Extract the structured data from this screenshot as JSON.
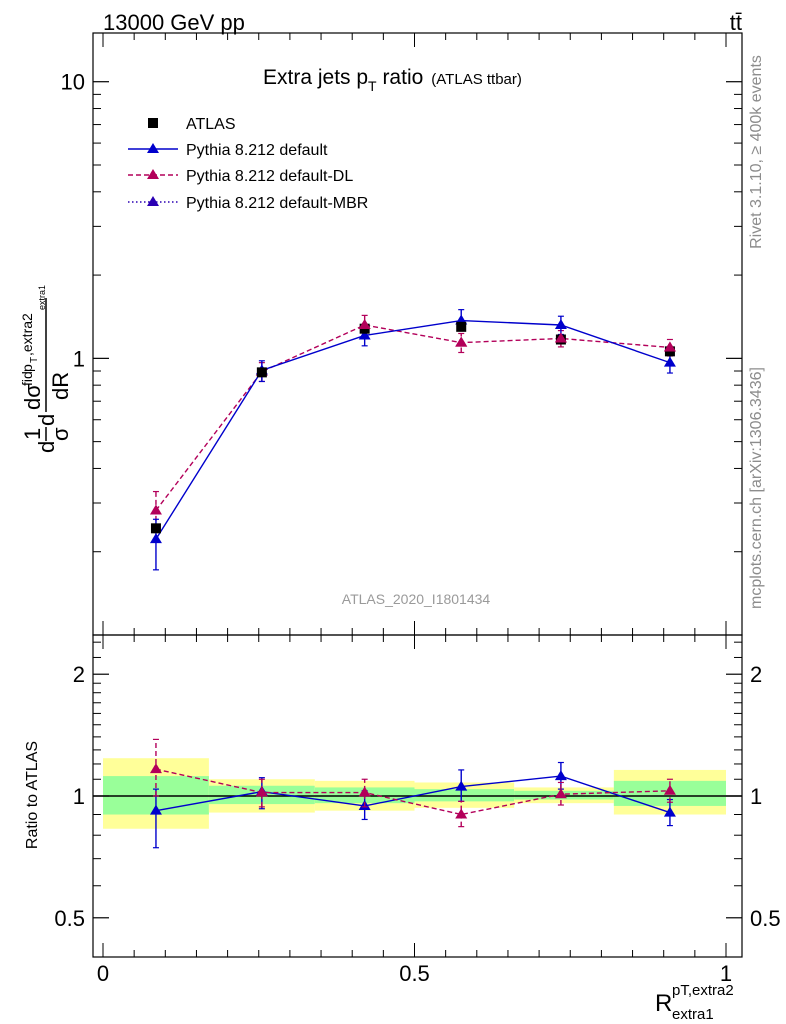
{
  "header": {
    "left_label": "13000 GeV pp",
    "right_label": "tt̄"
  },
  "side_labels": {
    "rivet": "Rivet 3.1.10, ≥ 400k events",
    "mcplots": "mcplots.cern.ch [arXiv:1306.3436]"
  },
  "watermark": "ATLAS_2020_I1801434",
  "colors": {
    "atlas": "#000000",
    "default": "#0000cc",
    "dl": "#b3005a",
    "mbr": "#2a00b3",
    "band_inner": "#99ff99",
    "band_outer": "#ffff99"
  },
  "chart_data": [
    {
      "type": "scatter",
      "title": "Extra jets p_T ratio (ATLAS ttbar)",
      "title_main": "Extra jets p",
      "title_sub": "T",
      "title_rest": " ratio",
      "title_paren": "(ATLAS ttbar)",
      "ylabel": "1/σ dσfid / dR pT,extra2 extra1",
      "yscale": "log",
      "ylim": [
        0.1,
        15
      ],
      "xlim": [
        0,
        1
      ],
      "yticks": [
        {
          "v": 1,
          "label": "1"
        },
        {
          "v": 10,
          "label": "10"
        }
      ],
      "legend_position": "top-left",
      "x": [
        0.085,
        0.255,
        0.42,
        0.575,
        0.735,
        0.91
      ],
      "bin_edges": [
        0,
        0.17,
        0.34,
        0.5,
        0.66,
        0.82,
        1.0
      ],
      "series": [
        {
          "name": "ATLAS",
          "style": "data",
          "values": [
            0.243,
            0.89,
            1.28,
            1.3,
            1.17,
            1.06
          ]
        },
        {
          "name": "Pythia 8.212 default",
          "style": "solid",
          "values": [
            0.222,
            0.905,
            1.21,
            1.37,
            1.32,
            0.965
          ],
          "err_lo": [
            0.172,
            0.825,
            1.11,
            1.27,
            1.22,
            0.885
          ],
          "err_hi": [
            0.262,
            0.98,
            1.31,
            1.5,
            1.42,
            1.045
          ]
        },
        {
          "name": "Pythia 8.212 default-DL",
          "style": "dashed",
          "values": [
            0.282,
            0.895,
            1.32,
            1.14,
            1.18,
            1.095
          ],
          "err_lo": [
            0.242,
            0.825,
            1.2,
            1.05,
            1.1,
            1.02
          ],
          "err_hi": [
            0.33,
            0.965,
            1.43,
            1.23,
            1.26,
            1.17
          ]
        },
        {
          "name": "Pythia 8.212 default-MBR",
          "style": "dotted",
          "values": [],
          "err_lo": [],
          "err_hi": []
        }
      ]
    },
    {
      "type": "scatter",
      "ylabel": "Ratio to ATLAS",
      "xlabel": "R extra1 pT,extra2",
      "xlabel_main": "R",
      "xlabel_sup": "pT,extra2",
      "xlabel_sub": "extra1",
      "yscale": "log",
      "ylim": [
        0.4,
        2.5
      ],
      "xlim": [
        0,
        1
      ],
      "yticks": [
        {
          "v": 0.5,
          "label": "0.5"
        },
        {
          "v": 1,
          "label": "1"
        },
        {
          "v": 2,
          "label": "2"
        }
      ],
      "xticks": [
        {
          "v": 0,
          "label": "0"
        },
        {
          "v": 0.5,
          "label": "0.5"
        },
        {
          "v": 1,
          "label": "1"
        }
      ],
      "x": [
        0.085,
        0.255,
        0.42,
        0.575,
        0.735,
        0.91
      ],
      "bands": {
        "bin_edges": [
          0,
          0.17,
          0.34,
          0.5,
          0.66,
          0.82,
          1.0
        ],
        "outer_lo": [
          0.83,
          0.91,
          0.92,
          0.935,
          0.96,
          0.9
        ],
        "outer_hi": [
          1.24,
          1.1,
          1.09,
          1.08,
          1.05,
          1.16
        ],
        "inner_lo": [
          0.9,
          0.955,
          0.96,
          0.97,
          0.98,
          0.945
        ],
        "inner_hi": [
          1.12,
          1.06,
          1.05,
          1.04,
          1.03,
          1.09
        ]
      },
      "series": [
        {
          "name": "Pythia 8.212 default",
          "style": "solid",
          "values": [
            0.92,
            1.025,
            0.945,
            1.055,
            1.12,
            0.91
          ],
          "err_lo": [
            0.745,
            0.93,
            0.875,
            0.97,
            1.04,
            0.845
          ],
          "err_hi": [
            1.04,
            1.11,
            1.03,
            1.16,
            1.21,
            0.98
          ]
        },
        {
          "name": "Pythia 8.212 default-DL",
          "style": "dashed",
          "values": [
            1.165,
            1.02,
            1.02,
            0.9,
            1.01,
            1.03
          ],
          "err_lo": [
            1.0,
            0.94,
            0.94,
            0.84,
            0.95,
            0.965
          ],
          "err_hi": [
            1.38,
            1.1,
            1.1,
            0.97,
            1.08,
            1.1
          ]
        }
      ]
    }
  ]
}
